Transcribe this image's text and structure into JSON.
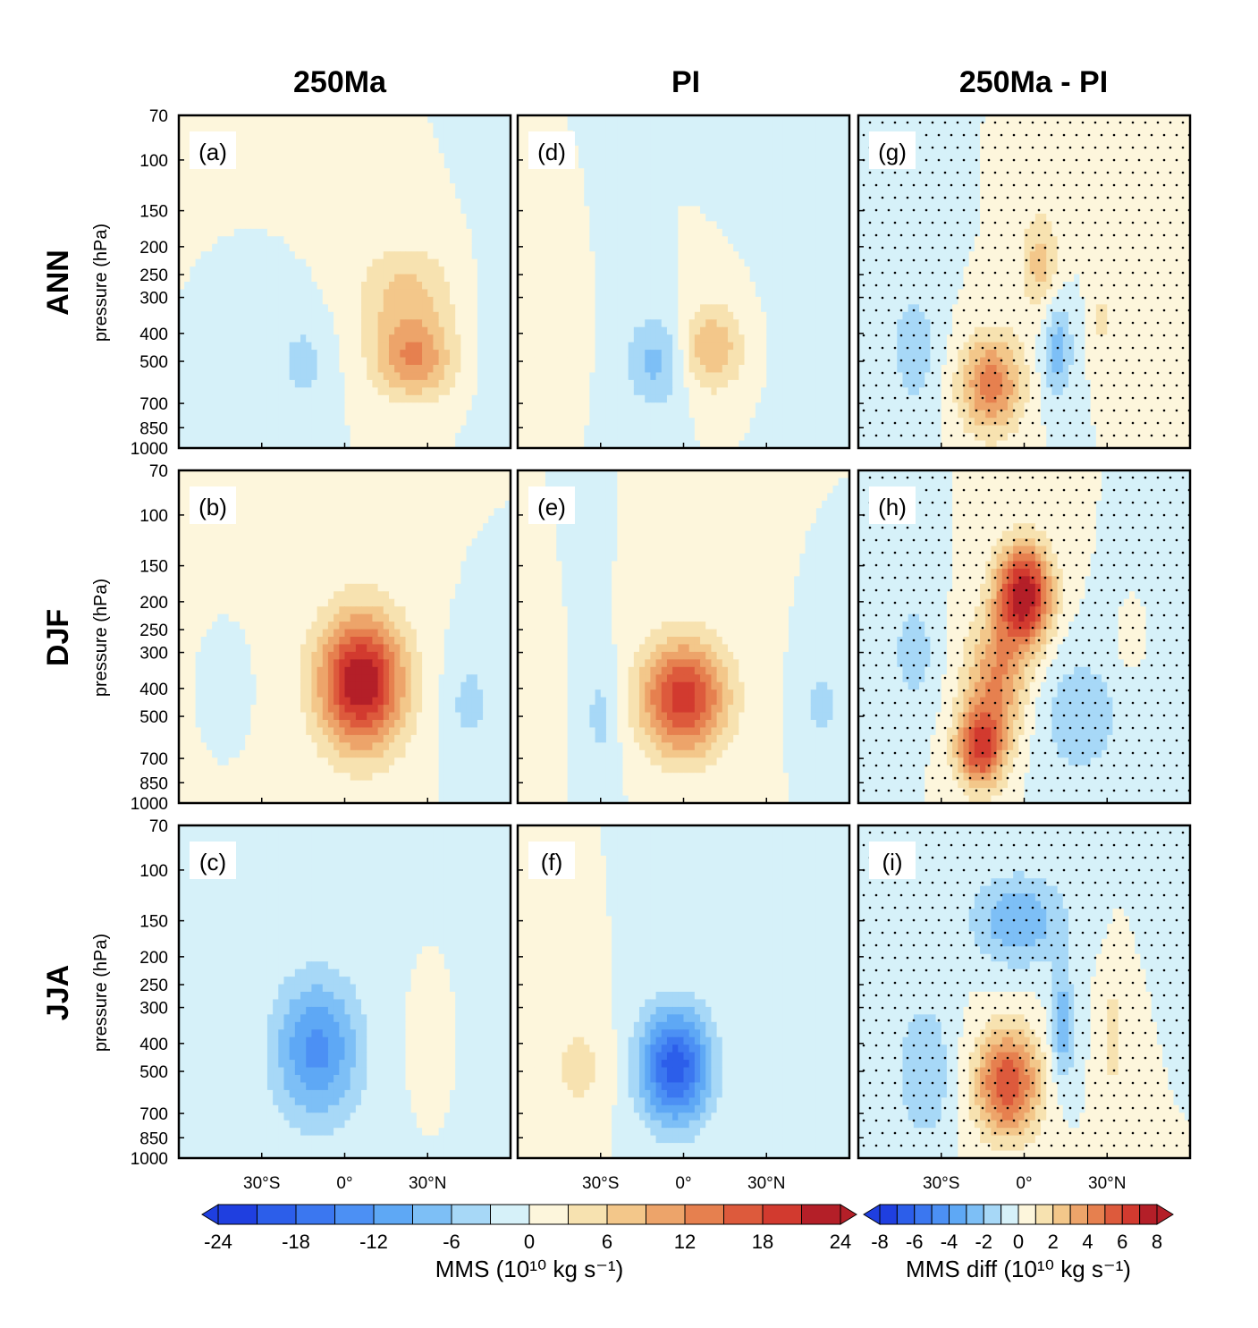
{
  "figure": {
    "column_titles": [
      "250Ma",
      "PI",
      "250Ma - PI"
    ],
    "row_titles": [
      "ANN",
      "DJF",
      "JJA"
    ],
    "y_axis_label": "pressure (hPa)"
  },
  "chart_data": {
    "type": "heatmap",
    "title": "",
    "variable": "Meridional mass streamfunction (MMS)",
    "xlabel": "",
    "ylabel": "pressure (hPa)",
    "x_ticks": [
      "30°S",
      "0°",
      "30°N"
    ],
    "x_tick_values": [
      -30,
      0,
      30
    ],
    "xlim": [
      -60,
      60
    ],
    "y_ticks": [
      "70",
      "100",
      "150",
      "200",
      "250",
      "300",
      "400",
      "500",
      "700",
      "850",
      "1000"
    ],
    "y_tick_values": [
      70,
      100,
      150,
      200,
      250,
      300,
      400,
      500,
      700,
      850,
      1000
    ],
    "ylim": [
      1000,
      70
    ],
    "y_scale": "log",
    "panels": [
      {
        "label": "(a)",
        "row": "ANN",
        "column": "250Ma",
        "cells": [
          {
            "lat": 25,
            "p": 500,
            "value": 11,
            "slat": 10,
            "sp": 0.22
          },
          {
            "lat": 22,
            "p": 300,
            "value": 7,
            "slat": 12,
            "sp": 0.3
          },
          {
            "lat": -15,
            "p": 500,
            "value": -4,
            "slat": 7,
            "sp": 0.26
          },
          {
            "lat": 53,
            "p": 400,
            "value": -1,
            "slat": 6,
            "sp": 0.8
          }
        ]
      },
      {
        "label": "(d)",
        "row": "ANN",
        "column": "PI",
        "cells": [
          {
            "lat": 10,
            "p": 450,
            "value": 9,
            "slat": 8,
            "sp": 0.24
          },
          {
            "lat": -10,
            "p": 500,
            "value": -7,
            "slat": 8,
            "sp": 0.26
          },
          {
            "lat": -45,
            "p": 450,
            "value": 3,
            "slat": 5,
            "sp": 0.22
          },
          {
            "lat": 45,
            "p": 400,
            "value": -1,
            "slat": 10,
            "sp": 0.8
          }
        ]
      },
      {
        "label": "(g)",
        "row": "ANN",
        "column": "250Ma - PI",
        "cells": [
          {
            "lat": -12,
            "p": 600,
            "value": 4.5,
            "slat": 8,
            "sp": 0.28
          },
          {
            "lat": 6,
            "p": 230,
            "value": 2.5,
            "slat": 5,
            "sp": 0.28
          },
          {
            "lat": 12,
            "p": 450,
            "value": -2.5,
            "slat": 4,
            "sp": 0.3
          },
          {
            "lat": 28,
            "p": 350,
            "value": 1.2,
            "slat": 3,
            "sp": 0.25
          },
          {
            "lat": -40,
            "p": 450,
            "value": -1.5,
            "slat": 7,
            "sp": 0.4
          }
        ]
      },
      {
        "label": "(b)",
        "row": "DJF",
        "column": "250Ma",
        "cells": [
          {
            "lat": 6,
            "p": 380,
            "value": 24,
            "slat": 11,
            "sp": 0.38
          },
          {
            "lat": 45,
            "p": 450,
            "value": -4,
            "slat": 6,
            "sp": 0.3
          },
          {
            "lat": -40,
            "p": 400,
            "value": -1,
            "slat": 3,
            "sp": 0.15
          }
        ]
      },
      {
        "label": "(e)",
        "row": "DJF",
        "column": "PI",
        "cells": [
          {
            "lat": 0,
            "p": 430,
            "value": 20,
            "slat": 11,
            "sp": 0.32
          },
          {
            "lat": -30,
            "p": 500,
            "value": -4,
            "slat": 5,
            "sp": 0.35
          },
          {
            "lat": -50,
            "p": 500,
            "value": 3,
            "slat": 4,
            "sp": 0.28
          },
          {
            "lat": 50,
            "p": 450,
            "value": -4,
            "slat": 5,
            "sp": 0.25
          }
        ]
      },
      {
        "label": "(h)",
        "row": "DJF",
        "column": "250Ma - PI",
        "cells": [
          {
            "lat": 0,
            "p": 190,
            "value": 8,
            "slat": 7,
            "sp": 0.28
          },
          {
            "lat": -16,
            "p": 650,
            "value": 6,
            "slat": 6,
            "sp": 0.22
          },
          {
            "lat": -10,
            "p": 380,
            "value": 4,
            "slat": 8,
            "sp": 0.35
          },
          {
            "lat": 20,
            "p": 500,
            "value": -1.6,
            "slat": 12,
            "sp": 0.4
          },
          {
            "lat": -40,
            "p": 300,
            "value": -1.5,
            "slat": 6,
            "sp": 0.35
          },
          {
            "lat": 38,
            "p": 280,
            "value": 0.8,
            "slat": 3,
            "sp": 0.15
          }
        ]
      },
      {
        "label": "(c)",
        "row": "JJA",
        "column": "250Ma",
        "cells": [
          {
            "lat": -10,
            "p": 420,
            "value": -13,
            "slat": 11,
            "sp": 0.4
          },
          {
            "lat": 28,
            "p": 400,
            "value": 1.5,
            "slat": 3,
            "sp": 0.22
          }
        ]
      },
      {
        "label": "(f)",
        "row": "JJA",
        "column": "PI",
        "cells": [
          {
            "lat": -3,
            "p": 480,
            "value": -20,
            "slat": 9,
            "sp": 0.32
          },
          {
            "lat": -38,
            "p": 480,
            "value": 4,
            "slat": 8,
            "sp": 0.3
          }
        ]
      },
      {
        "label": "(i)",
        "row": "JJA",
        "column": "250Ma - PI",
        "cells": [
          {
            "lat": -6,
            "p": 550,
            "value": 6,
            "slat": 8,
            "sp": 0.3
          },
          {
            "lat": -2,
            "p": 150,
            "value": -3,
            "slat": 12,
            "sp": 0.25
          },
          {
            "lat": 14,
            "p": 350,
            "value": -3,
            "slat": 3,
            "sp": 0.3
          },
          {
            "lat": 32,
            "p": 380,
            "value": 1.5,
            "slat": 3,
            "sp": 0.38
          },
          {
            "lat": -36,
            "p": 500,
            "value": -2,
            "slat": 7,
            "sp": 0.4
          }
        ]
      }
    ],
    "colorbars": [
      {
        "title": "MMS (10¹⁰ kg s⁻¹)",
        "tick_labels": [
          "-24",
          "-18",
          "-12",
          "-6",
          "0",
          "6",
          "12",
          "18",
          "24"
        ],
        "levels": [
          -24,
          -21,
          -18,
          -15,
          -12,
          -9,
          -6,
          -3,
          0,
          3,
          6,
          9,
          12,
          15,
          18,
          21,
          24
        ],
        "colors": [
          "#1f3fe0",
          "#2c5eea",
          "#3b77f0",
          "#4c90f4",
          "#5ea8f5",
          "#7dbff6",
          "#a7d8f7",
          "#d6f1f9",
          "#fdf6dc",
          "#f7e2b0",
          "#f3c78a",
          "#eda46a",
          "#e6804f",
          "#dd5a3c",
          "#d23a2f",
          "#b41f28"
        ]
      },
      {
        "title": "MMS diff (10¹⁰ kg s⁻¹)",
        "tick_labels": [
          "-8",
          "-6",
          "-4",
          "-2",
          "0",
          "2",
          "4",
          "6",
          "8"
        ],
        "levels": [
          -8,
          -7,
          -6,
          -5,
          -4,
          -3,
          -2,
          -1,
          0,
          1,
          2,
          3,
          4,
          5,
          6,
          7,
          8
        ],
        "colors": [
          "#1f3fe0",
          "#2c5eea",
          "#3b77f0",
          "#4c90f4",
          "#5ea8f5",
          "#7dbff6",
          "#a7d8f7",
          "#d6f1f9",
          "#fdf6dc",
          "#f7e2b0",
          "#f3c78a",
          "#eda46a",
          "#e6804f",
          "#dd5a3c",
          "#d23a2f",
          "#b41f28"
        ]
      }
    ]
  }
}
